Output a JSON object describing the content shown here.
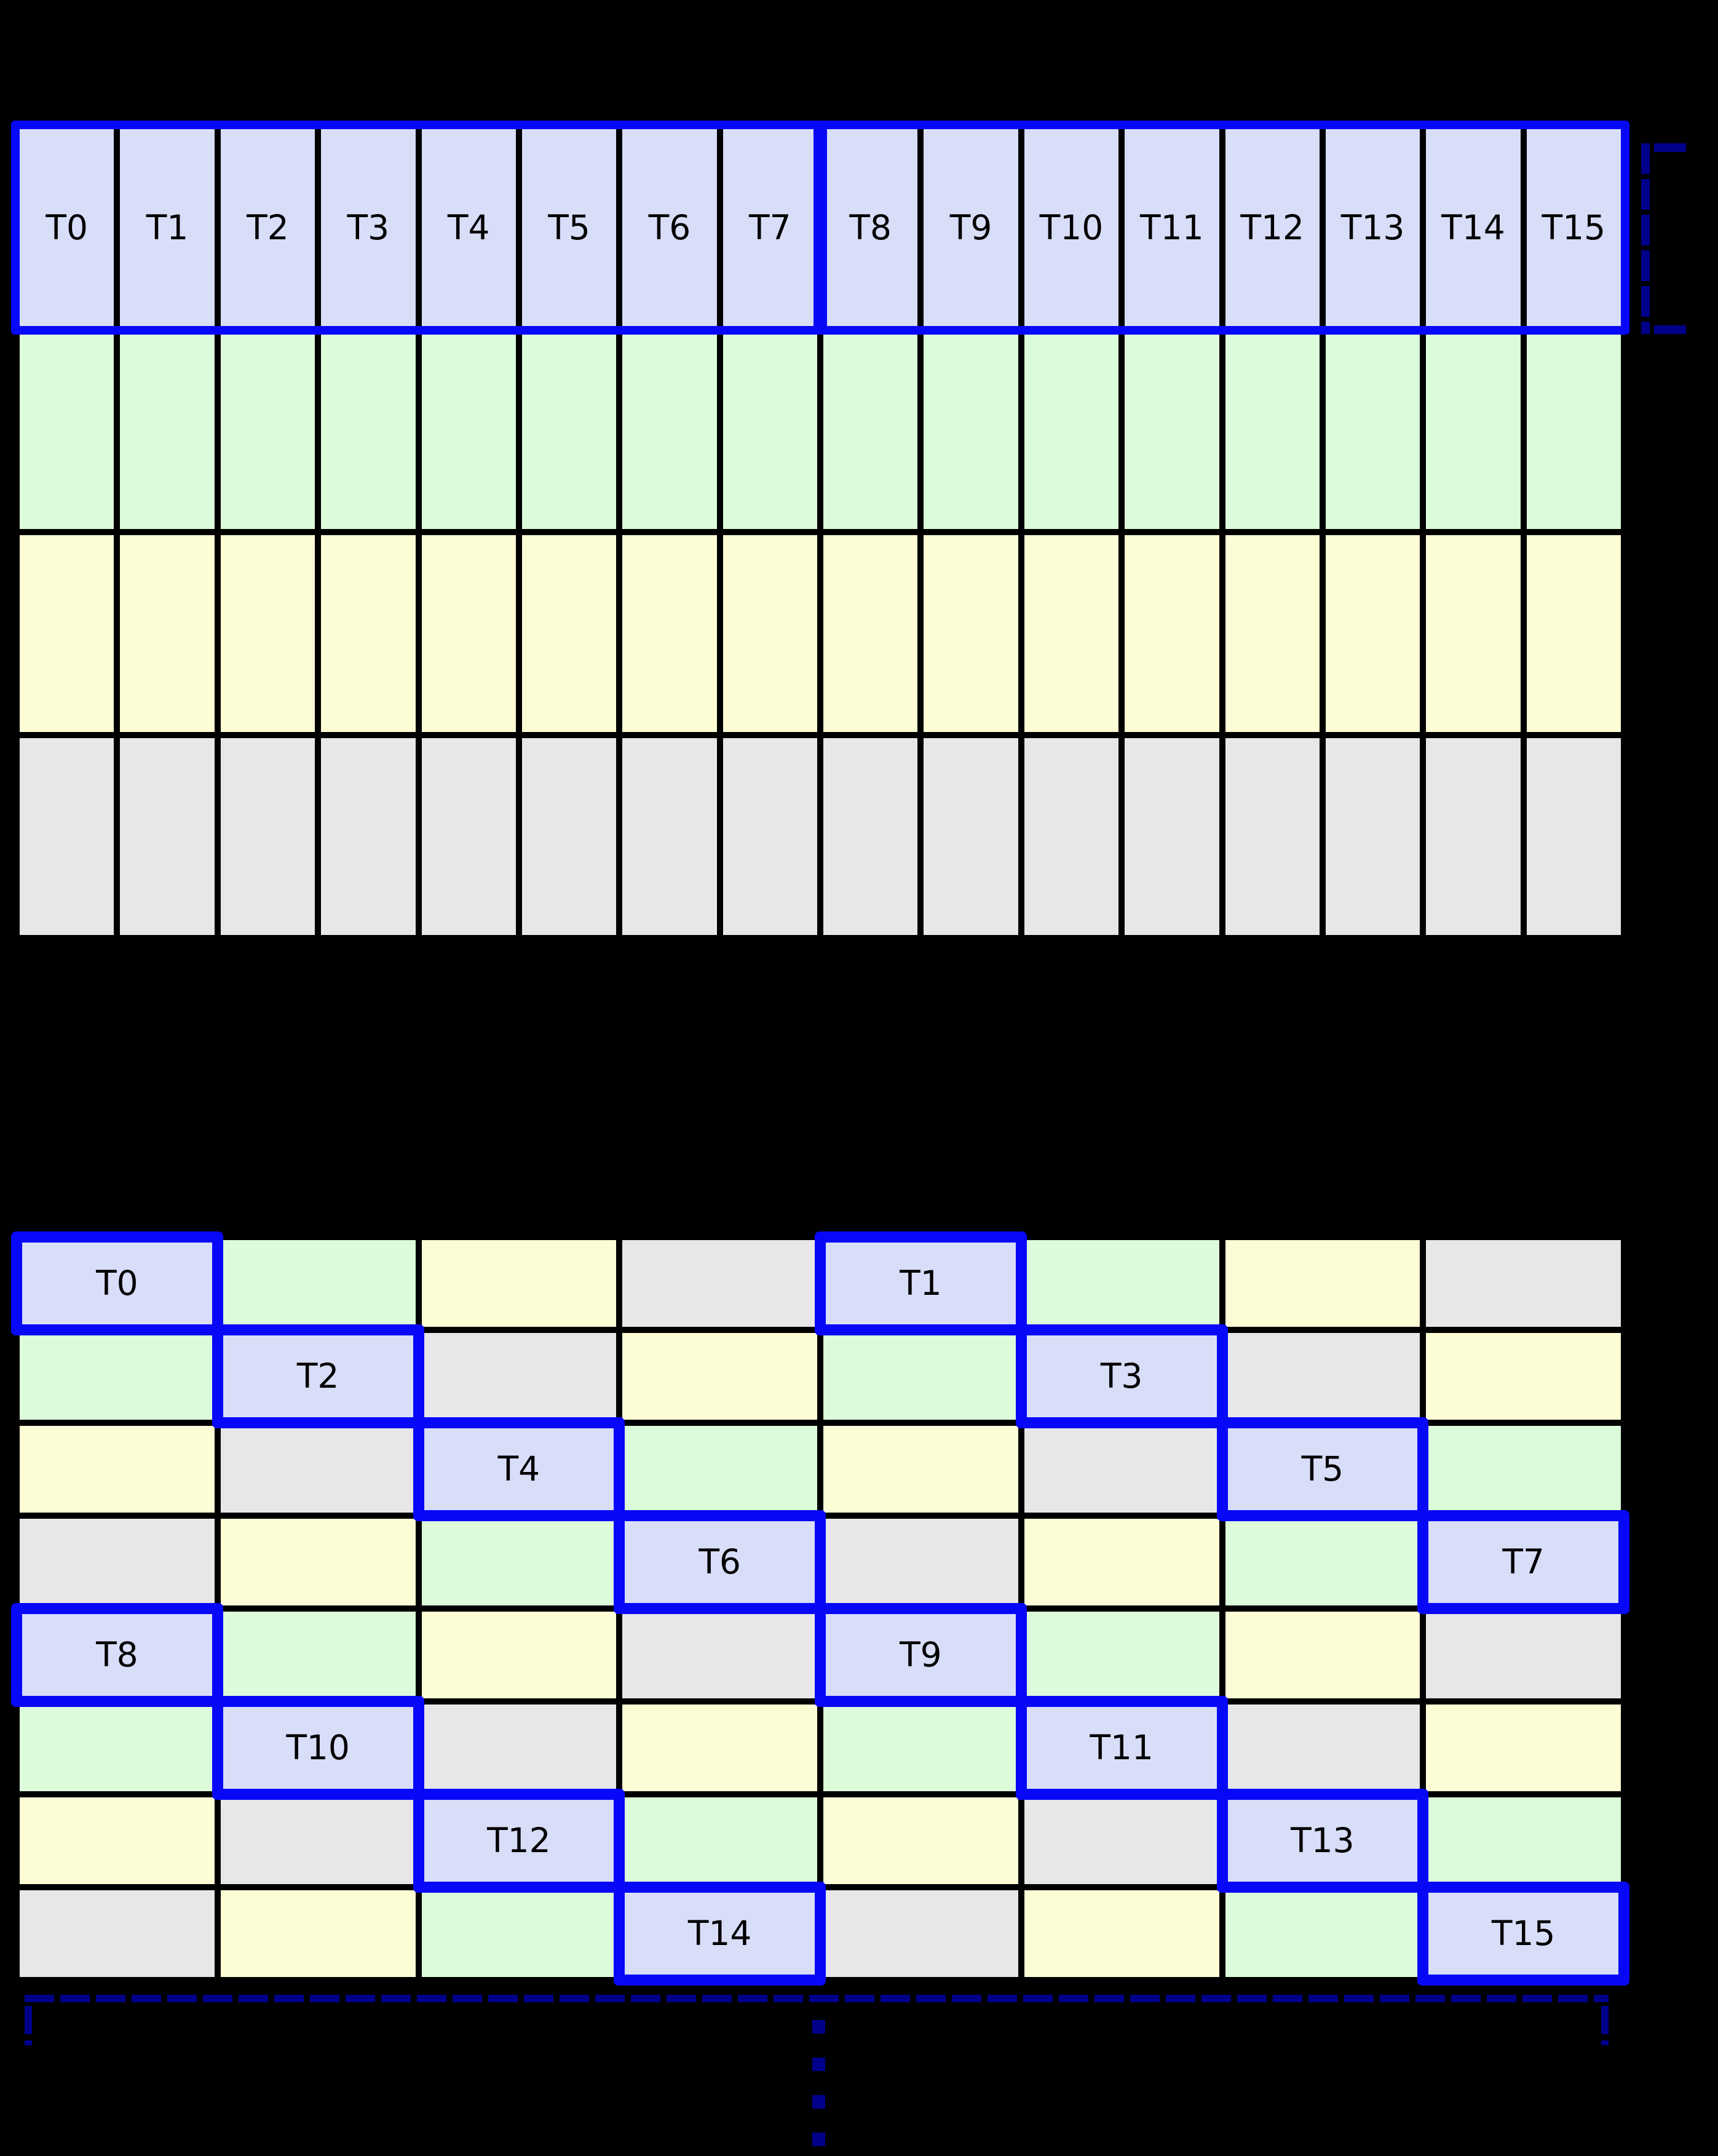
{
  "figure": {
    "background": "#000000",
    "accent_blue": "#0808F8",
    "bracket_navy": "#00008B",
    "grid_line_color": "#000000",
    "label_color": "#000000"
  },
  "bank_colors": {
    "blue": "#D8DDF8",
    "green": "#DCFBDA",
    "yellow": "#FDFDD5",
    "gray": "#E7E7E9"
  },
  "top_table": {
    "columns": 16,
    "thread_labels": [
      "T0",
      "T1",
      "T2",
      "T3",
      "T4",
      "T5",
      "T6",
      "T7",
      "T8",
      "T9",
      "T10",
      "T11",
      "T12",
      "T13",
      "T14",
      "T15"
    ],
    "row_fills": [
      "blue",
      "green",
      "yellow",
      "gray"
    ],
    "half_warp_groups": [
      [
        "T0",
        "T7"
      ],
      [
        "T8",
        "T15"
      ]
    ]
  },
  "bottom_table": {
    "rows": 8,
    "cols": 8,
    "cell_fills": [
      [
        "blue",
        "green",
        "yellow",
        "gray",
        "blue",
        "green",
        "yellow",
        "gray"
      ],
      [
        "green",
        "blue",
        "gray",
        "yellow",
        "green",
        "blue",
        "gray",
        "yellow"
      ],
      [
        "yellow",
        "gray",
        "blue",
        "green",
        "yellow",
        "gray",
        "blue",
        "green"
      ],
      [
        "gray",
        "yellow",
        "green",
        "blue",
        "gray",
        "yellow",
        "green",
        "blue"
      ],
      [
        "blue",
        "green",
        "yellow",
        "gray",
        "blue",
        "green",
        "yellow",
        "gray"
      ],
      [
        "green",
        "blue",
        "gray",
        "yellow",
        "green",
        "blue",
        "gray",
        "yellow"
      ],
      [
        "yellow",
        "gray",
        "blue",
        "green",
        "yellow",
        "gray",
        "blue",
        "green"
      ],
      [
        "gray",
        "yellow",
        "green",
        "blue",
        "gray",
        "yellow",
        "green",
        "blue"
      ]
    ],
    "thread_cells": [
      {
        "label": "T0",
        "row": 0,
        "col": 0
      },
      {
        "label": "T1",
        "row": 0,
        "col": 4
      },
      {
        "label": "T2",
        "row": 1,
        "col": 1
      },
      {
        "label": "T3",
        "row": 1,
        "col": 5
      },
      {
        "label": "T4",
        "row": 2,
        "col": 2
      },
      {
        "label": "T5",
        "row": 2,
        "col": 6
      },
      {
        "label": "T6",
        "row": 3,
        "col": 3
      },
      {
        "label": "T7",
        "row": 3,
        "col": 7
      },
      {
        "label": "T8",
        "row": 4,
        "col": 0
      },
      {
        "label": "T9",
        "row": 4,
        "col": 4
      },
      {
        "label": "T10",
        "row": 5,
        "col": 1
      },
      {
        "label": "T11",
        "row": 5,
        "col": 5
      },
      {
        "label": "T12",
        "row": 6,
        "col": 2
      },
      {
        "label": "T13",
        "row": 6,
        "col": 6
      },
      {
        "label": "T14",
        "row": 7,
        "col": 3
      },
      {
        "label": "T15",
        "row": 7,
        "col": 7
      }
    ]
  },
  "annotations": {
    "right_bracket_icon": "dashed-bracket-icon",
    "bottom_bracket_icon": "dashed-bracket-icon",
    "continuation_icon": "vertical-ellipsis-icon"
  }
}
